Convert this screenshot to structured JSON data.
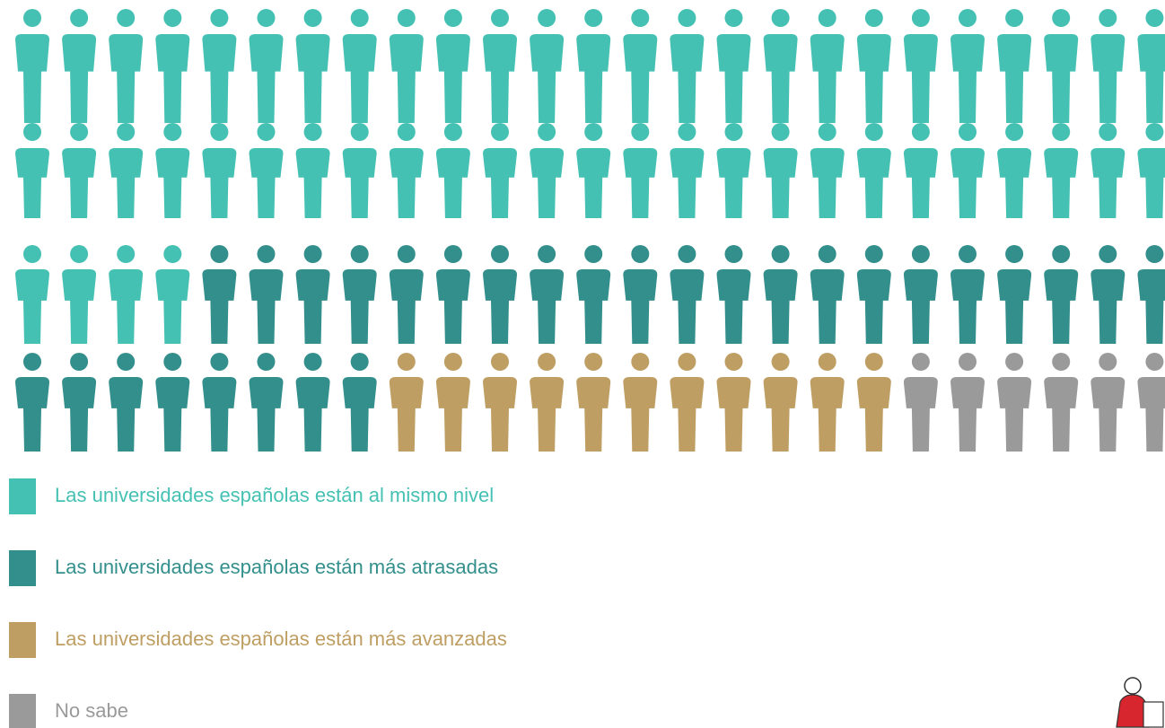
{
  "chart_data": {
    "type": "pictogram",
    "categories": [
      "Las universidades españolas están al mismo nivel",
      "Las universidades españolas están más atrasadas",
      "Las universidades españolas están más avanzadas",
      "No sabe"
    ],
    "values": [
      54,
      29,
      11,
      6
    ],
    "colors": [
      "#45c1b3",
      "#338f8c",
      "#bf9e63",
      "#9a9a9a"
    ]
  }
}
